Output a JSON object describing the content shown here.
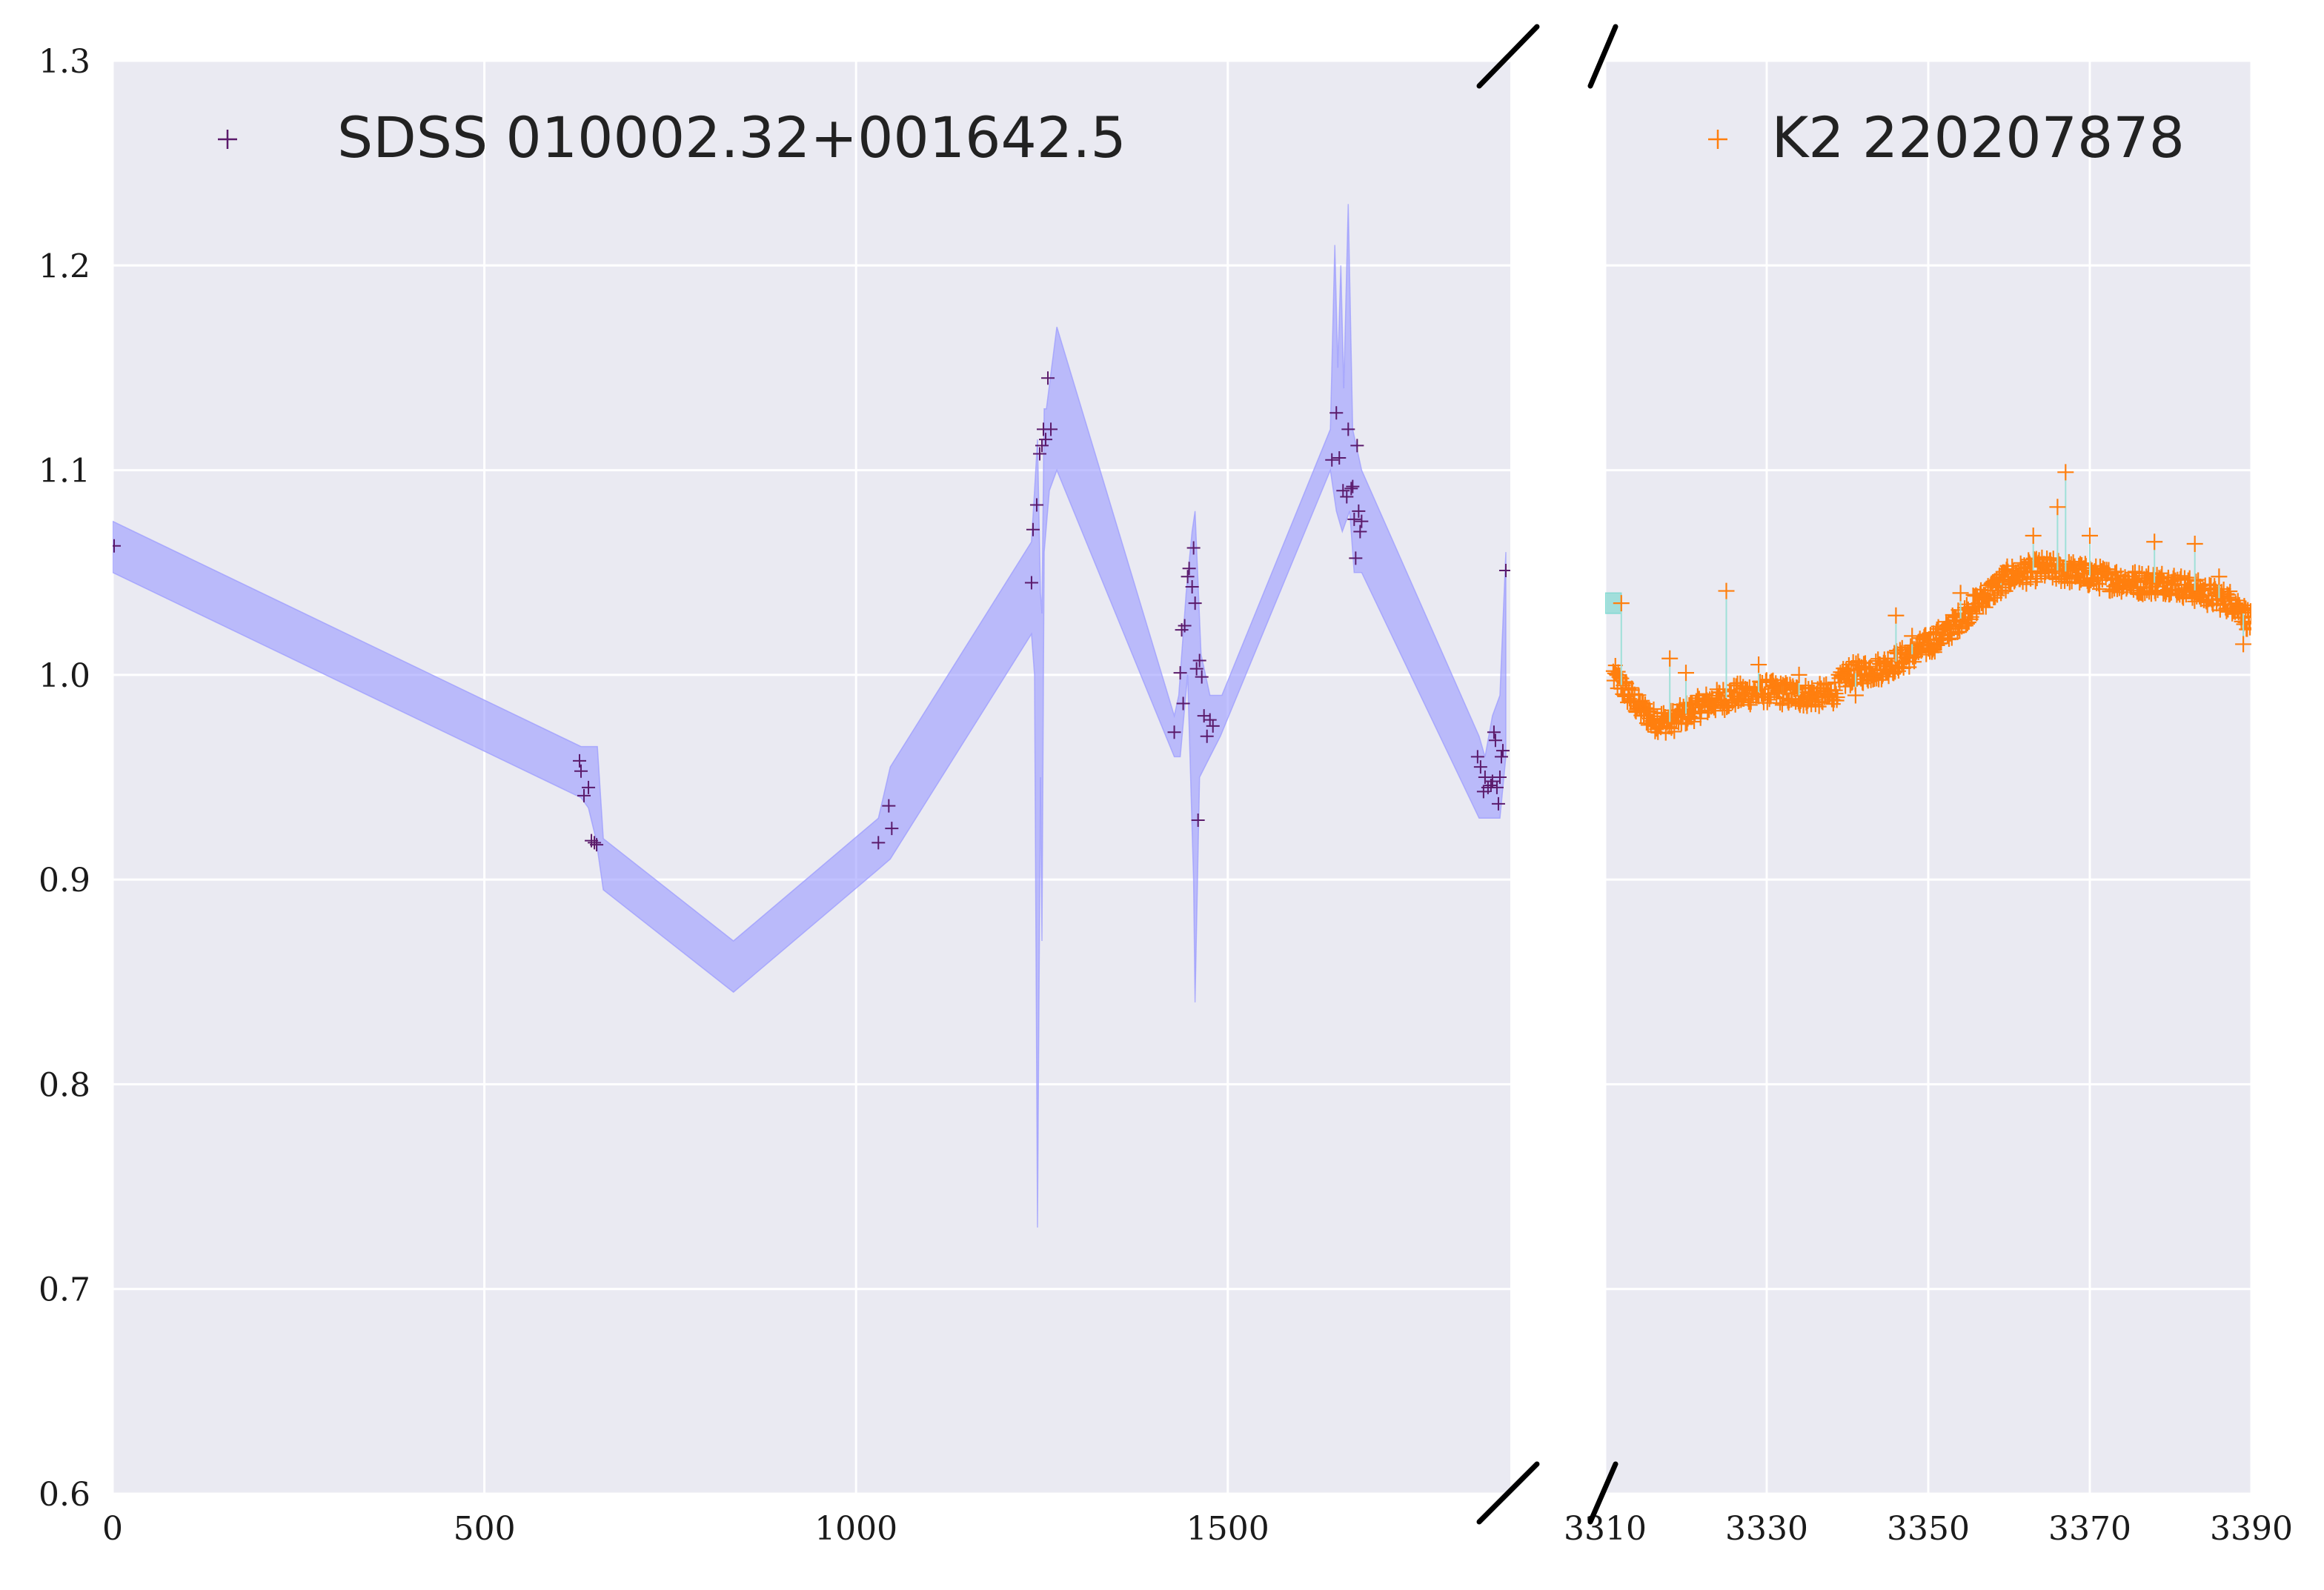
{
  "chart_data": {
    "type": "scatter",
    "title": "",
    "xlabel": "",
    "ylabel": "",
    "grid": true,
    "broken_x_axis": true,
    "ylim": [
      0.6,
      1.3
    ],
    "y_ticks": [
      "0.6",
      "0.7",
      "0.8",
      "0.9",
      "1.0",
      "1.1",
      "1.2",
      "1.3"
    ],
    "panels": [
      {
        "xlim": [
          0,
          1880
        ],
        "x_ticks": [
          "0",
          "500",
          "1000",
          "1500"
        ],
        "legend_placement": "top-left",
        "series": [
          {
            "name": "SDSS 010002.32+001642.5",
            "marker": "+",
            "color": "#5b1a6b",
            "points": [
              [
                2,
                1.063
              ],
              [
                628,
                0.958
              ],
              [
                630,
                0.953
              ],
              [
                634,
                0.941
              ],
              [
                640,
                0.945
              ],
              [
                644,
                0.919
              ],
              [
                648,
                0.918
              ],
              [
                651,
                0.917
              ],
              [
                1030,
                0.918
              ],
              [
                1044,
                0.936
              ],
              [
                1048,
                0.925
              ],
              [
                1236,
                1.045
              ],
              [
                1238,
                1.071
              ],
              [
                1243,
                1.083
              ],
              [
                1247,
                1.108
              ],
              [
                1250,
                1.112
              ],
              [
                1252,
                1.12
              ],
              [
                1255,
                1.115
              ],
              [
                1258,
                1.145
              ],
              [
                1262,
                1.12
              ],
              [
                1428,
                0.972
              ],
              [
                1436,
                1.001
              ],
              [
                1438,
                1.022
              ],
              [
                1440,
                0.986
              ],
              [
                1442,
                1.024
              ],
              [
                1446,
                1.048
              ],
              [
                1448,
                1.052
              ],
              [
                1452,
                1.043
              ],
              [
                1454,
                1.062
              ],
              [
                1456,
                1.035
              ],
              [
                1458,
                1.003
              ],
              [
                1460,
                0.929
              ],
              [
                1462,
                1.007
              ],
              [
                1465,
                0.999
              ],
              [
                1468,
                0.98
              ],
              [
                1472,
                0.97
              ],
              [
                1476,
                0.978
              ],
              [
                1480,
                0.975
              ],
              [
                1640,
                1.105
              ],
              [
                1646,
                1.128
              ],
              [
                1650,
                1.106
              ],
              [
                1655,
                1.09
              ],
              [
                1660,
                1.087
              ],
              [
                1662,
                1.12
              ],
              [
                1666,
                1.091
              ],
              [
                1668,
                1.092
              ],
              [
                1670,
                1.076
              ],
              [
                1672,
                1.057
              ],
              [
                1674,
                1.112
              ],
              [
                1676,
                1.08
              ],
              [
                1678,
                1.07
              ],
              [
                1680,
                1.075
              ],
              [
                1836,
                0.96
              ],
              [
                1840,
                0.955
              ],
              [
                1844,
                0.943
              ],
              [
                1846,
                0.95
              ],
              [
                1850,
                0.945
              ],
              [
                1854,
                0.946
              ],
              [
                1856,
                0.948
              ],
              [
                1858,
                0.972
              ],
              [
                1860,
                0.968
              ],
              [
                1862,
                0.945
              ],
              [
                1864,
                0.937
              ],
              [
                1866,
                0.95
              ],
              [
                1868,
                0.96
              ],
              [
                1870,
                0.963
              ],
              [
                1874,
                1.051
              ]
            ]
          },
          {
            "name": "",
            "kind": "confidence-band",
            "color": "#9999ff",
            "upper": [
              [
                0,
                1.075
              ],
              [
                630,
                0.965
              ],
              [
                640,
                0.965
              ],
              [
                652,
                0.965
              ],
              [
                660,
                0.92
              ],
              [
                835,
                0.87
              ],
              [
                1030,
                0.93
              ],
              [
                1046,
                0.955
              ],
              [
                1236,
                1.065
              ],
              [
                1240,
                1.09
              ],
              [
                1244,
                1.115
              ],
              [
                1248,
                1.04
              ],
              [
                1250,
                1.03
              ],
              [
                1253,
                1.13
              ],
              [
                1256,
                1.13
              ],
              [
                1270,
                1.17
              ],
              [
                1428,
                0.98
              ],
              [
                1434,
                0.99
              ],
              [
                1444,
                1.04
              ],
              [
                1452,
                1.07
              ],
              [
                1456,
                1.08
              ],
              [
                1464,
                1.01
              ],
              [
                1476,
                0.99
              ],
              [
                1492,
                0.99
              ],
              [
                1638,
                1.12
              ],
              [
                1644,
                1.21
              ],
              [
                1648,
                1.15
              ],
              [
                1652,
                1.2
              ],
              [
                1656,
                1.14
              ],
              [
                1662,
                1.23
              ],
              [
                1668,
                1.12
              ],
              [
                1680,
                1.1
              ],
              [
                1838,
                0.97
              ],
              [
                1846,
                0.96
              ],
              [
                1856,
                0.98
              ],
              [
                1866,
                0.99
              ],
              [
                1874,
                1.06
              ]
            ],
            "lower": [
              [
                0,
                1.05
              ],
              [
                630,
                0.94
              ],
              [
                640,
                0.935
              ],
              [
                650,
                0.92
              ],
              [
                660,
                0.895
              ],
              [
                835,
                0.845
              ],
              [
                1030,
                0.905
              ],
              [
                1046,
                0.91
              ],
              [
                1236,
                1.02
              ],
              [
                1240,
                1.0
              ],
              [
                1244,
                0.73
              ],
              [
                1248,
                0.95
              ],
              [
                1250,
                0.87
              ],
              [
                1253,
                1.06
              ],
              [
                1260,
                1.09
              ],
              [
                1270,
                1.1
              ],
              [
                1428,
                0.96
              ],
              [
                1436,
                0.96
              ],
              [
                1446,
                1.0
              ],
              [
                1454,
                0.9
              ],
              [
                1456,
                0.84
              ],
              [
                1462,
                0.95
              ],
              [
                1476,
                0.96
              ],
              [
                1490,
                0.97
              ],
              [
                1638,
                1.1
              ],
              [
                1646,
                1.08
              ],
              [
                1654,
                1.07
              ],
              [
                1664,
                1.08
              ],
              [
                1670,
                1.05
              ],
              [
                1680,
                1.05
              ],
              [
                1838,
                0.93
              ],
              [
                1846,
                0.93
              ],
              [
                1856,
                0.93
              ],
              [
                1866,
                0.93
              ],
              [
                1874,
                0.96
              ]
            ]
          }
        ]
      },
      {
        "xlim": [
          3310,
          3390
        ],
        "x_ticks": [
          "3310",
          "3330",
          "3350",
          "3370",
          "3390"
        ],
        "legend_placement": "top-right",
        "series": [
          {
            "name": "K2 220207878",
            "marker": "+",
            "color": "#ff7f0e",
            "trend": [
              [
                3311,
                1.0
              ],
              [
                3314,
                0.985
              ],
              [
                3316,
                0.978
              ],
              [
                3318,
                0.977
              ],
              [
                3322,
                0.985
              ],
              [
                3326,
                0.99
              ],
              [
                3330,
                0.992
              ],
              [
                3334,
                0.99
              ],
              [
                3338,
                0.99
              ],
              [
                3340,
                1.0
              ],
              [
                3344,
                1.003
              ],
              [
                3348,
                1.01
              ],
              [
                3352,
                1.02
              ],
              [
                3356,
                1.035
              ],
              [
                3360,
                1.048
              ],
              [
                3364,
                1.052
              ],
              [
                3368,
                1.05
              ],
              [
                3372,
                1.047
              ],
              [
                3376,
                1.045
              ],
              [
                3380,
                1.045
              ],
              [
                3384,
                1.04
              ],
              [
                3388,
                1.035
              ],
              [
                3390,
                1.025
              ]
            ],
            "outliers": [
              [
                3312,
                1.035
              ],
              [
                3318,
                1.008
              ],
              [
                3320,
                1.001
              ],
              [
                3325,
                1.041
              ],
              [
                3329,
                1.005
              ],
              [
                3332,
                0.995
              ],
              [
                3334,
                1.0
              ],
              [
                3341,
                0.99
              ],
              [
                3346,
                1.029
              ],
              [
                3348,
                1.019
              ],
              [
                3351,
                1.021
              ],
              [
                3354,
                1.04
              ],
              [
                3359,
                1.04
              ],
              [
                3363,
                1.068
              ],
              [
                3366,
                1.082
              ],
              [
                3367,
                1.099
              ],
              [
                3370,
                1.068
              ],
              [
                3378,
                1.065
              ],
              [
                3383,
                1.064
              ],
              [
                3386,
                1.048
              ],
              [
                3389,
                1.015
              ]
            ]
          },
          {
            "name": "",
            "kind": "confidence-band",
            "color": "#6fd6cc",
            "upper": [
              [
                3310,
                1.04
              ],
              [
                3312,
                1.04
              ]
            ],
            "lower": [
              [
                3310,
                1.03
              ],
              [
                3312,
                1.03
              ]
            ]
          }
        ]
      }
    ]
  }
}
